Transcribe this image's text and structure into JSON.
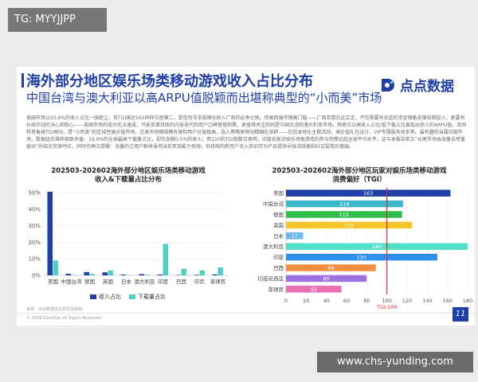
{
  "tag": "TG: MYYJJPP",
  "url": "www.chs-yunding.com",
  "slide": {
    "title": "海外部分地区娱乐场类移动游戏收入占比分布",
    "subtitle": "中国台湾与澳大利亚以高ARPU值脱颖而出堪称典型的“小而美”市场",
    "logo": "点点数据",
    "body": "美国市场以50.6%的收入占比一骑绝尘，其TGI高达163同样位居第二，是任何寻求规模化收入厂商的必争之地。但高回报伴随高门槛——厂商若想在此立足，不仅需要有充足的资金储备支撑前期投入，更要有长线作战的决心和耐心——美国市场的成功无法速成，只能依靠持续的内容迭代和用户口碑慢慢积累。更值得关注的则是中国台湾和澳大利亚市场。两者均以高收入占比/低下载占比展现出惊人的ARPU值，且同样具备高TGI倾向，是“小而美”的区域性高价值市场。这类市场随规模有限但用户价值极高，投入策略更倾向精细化深耕——包括本地化主题活动、高价值礼包设计、VIP专属服务体系等。最有趣的当属印度市场，数据组合堪称极致矛盾：19.0%的全球最高下载量占比，却仅贡献0.5%的收入；而150的TGI指数又表明，印度玩家对娱乐场类游戏的参与热情远超全球平均水平。这与本报告前文“长尾市场由海量自然量驱动”的结论完美呼应，同时也再次提醒：海量的泛用户群体虽然当前变现能力有限，但持续的新用户流入依旧可为产品提供长线活跃度和社交裂变的基础。",
    "source": "来源：点点数据自主研究及绘制。",
    "copyright": "© 2026 DianDian All Rights Reserved.",
    "page": "11",
    "tgi_label": "TGI:100"
  },
  "chart_data": [
    {
      "type": "bar",
      "title": "202503-202602海外部分地区娱乐场类移动游戏\n收入&下载量占比分布",
      "categories": [
        "美国",
        "中国台湾",
        "德国",
        "英国",
        "日本",
        "澳大利亚",
        "印度",
        "巴西",
        "印尼",
        "菲律宾"
      ],
      "series": [
        {
          "name": "收入占比",
          "color": "#1f3ea8",
          "values": [
            50.6,
            1.0,
            2.0,
            1.8,
            0.5,
            0.8,
            0.5,
            0.2,
            0.3,
            0.6
          ]
        },
        {
          "name": "下载量占比",
          "color": "#4dd0c6",
          "values": [
            9.0,
            0.2,
            0.9,
            3.0,
            0.1,
            0.4,
            19.0,
            4.0,
            3.0,
            4.8
          ]
        }
      ],
      "yticks": [
        "0%",
        "10%",
        "20%",
        "30%",
        "40%",
        "50%"
      ],
      "ylim": [
        0,
        52
      ]
    },
    {
      "type": "bar",
      "orientation": "horizontal",
      "title": "202503-202602海外部分地区玩家对娱乐场类移动游戏\n消费偏好（TGI）",
      "categories": [
        "美国",
        "中国台湾",
        "德国",
        "英国",
        "日本",
        "澳大利亚",
        "印度",
        "巴西",
        "印度尼西亚",
        "菲律宾"
      ],
      "values": [
        163,
        116,
        115,
        125,
        17,
        180,
        150,
        89,
        80,
        55
      ],
      "colors": [
        "#1f3ea8",
        "#39b8c9",
        "#31bd49",
        "#f6c52c",
        "#6ab8f0",
        "#53e0c8",
        "#2f8fef",
        "#f28e3e",
        "#9b72e0",
        "#ea6fb7"
      ],
      "xticks": [
        "0",
        "20",
        "40",
        "60",
        "80",
        "100",
        "120",
        "140",
        "160",
        "180"
      ],
      "xlim": [
        0,
        180
      ],
      "reference": 100
    }
  ]
}
